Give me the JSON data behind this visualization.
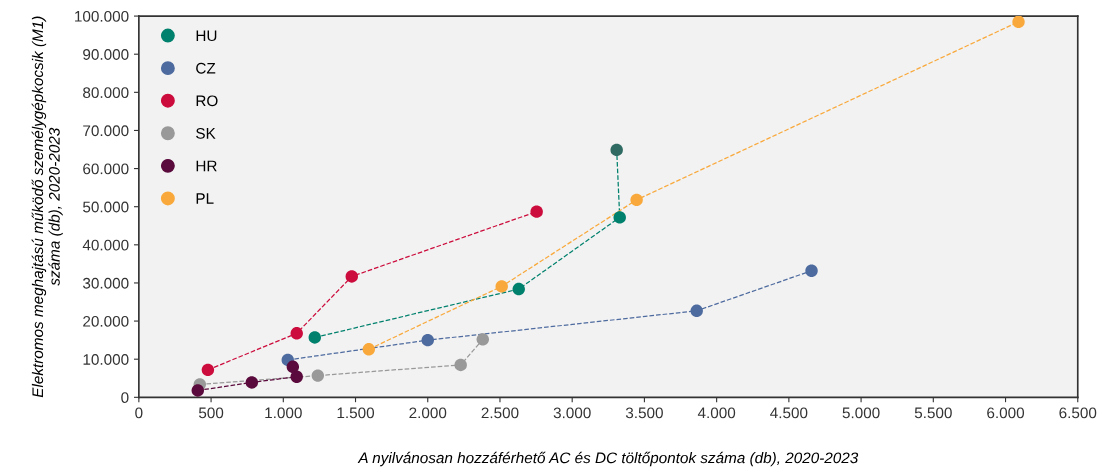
{
  "chart_data": {
    "type": "line",
    "xlabel": "A nyilvánosan hozzáférhető AC és DC töltőpontok száma (db), 2020-2023",
    "ylabel": "Elektromos meghajtású működő személygépkocsik (M1)\nszáma (db), 2020-2023",
    "series": [
      {
        "name": "HU",
        "color": "#00816d",
        "colors": [
          "#00816d",
          "#00816d",
          "#00816d",
          "#2f6b63"
        ],
        "x": [
          1218,
          2630,
          3329,
          3308
        ],
        "values": [
          15700,
          28400,
          47200,
          64900
        ]
      },
      {
        "name": "CZ",
        "color": "#4e6b9f",
        "x": [
          1031,
          2000,
          3862,
          4657
        ],
        "values": [
          9800,
          15000,
          22700,
          33200
        ]
      },
      {
        "name": "RO",
        "color": "#cc0c3c",
        "x": [
          478,
          1093,
          1474,
          2754
        ],
        "values": [
          7200,
          16800,
          31700,
          48700
        ]
      },
      {
        "name": "SK",
        "color": "#999999",
        "x": [
          422,
          1239,
          2228,
          2381
        ],
        "values": [
          3400,
          5700,
          8500,
          15200
        ]
      },
      {
        "name": "HR",
        "color": "#5a0a3c",
        "x": [
          408,
          782,
          1093,
          1066
        ],
        "values": [
          1800,
          3900,
          5400,
          8000
        ]
      },
      {
        "name": "PL",
        "color": "#f9a93b",
        "x": [
          1592,
          2512,
          3446,
          6090
        ],
        "values": [
          12600,
          29100,
          51800,
          98500
        ]
      }
    ],
    "xlim": [
      0,
      6500
    ],
    "ylim": [
      0,
      100000
    ],
    "xticks": [
      0,
      {
        "value": 500,
        "label": "500"
      },
      {
        "value": 1000,
        "label": "1.000"
      },
      {
        "value": 1500,
        "label": "1.500"
      },
      {
        "value": 2000,
        "label": "2.000"
      },
      {
        "value": 2500,
        "label": "2.500"
      },
      {
        "value": 3000,
        "label": "3.000"
      },
      {
        "value": 3500,
        "label": "3.500"
      },
      {
        "value": 4000,
        "label": "4.000"
      },
      {
        "value": 4500,
        "label": "4.500"
      },
      {
        "value": 5000,
        "label": "5.000"
      },
      {
        "value": 5500,
        "label": "5.500"
      },
      {
        "value": 6000,
        "label": "6.000"
      },
      {
        "value": 6500,
        "label": "6.500"
      }
    ],
    "yticks": [
      0,
      {
        "value": 10000,
        "label": "10.000"
      },
      {
        "value": 20000,
        "label": "20.000"
      },
      {
        "value": 30000,
        "label": "30.000"
      },
      {
        "value": 40000,
        "label": "40.000"
      },
      {
        "value": 50000,
        "label": "50.000"
      },
      {
        "value": 60000,
        "label": "60.000"
      },
      {
        "value": 70000,
        "label": "70.000"
      },
      {
        "value": 80000,
        "label": "80.000"
      },
      {
        "value": 90000,
        "label": "90.000"
      },
      {
        "value": 100000,
        "label": "100.000"
      }
    ],
    "grid": false,
    "legend": "top left",
    "marker": "circle",
    "line_style": "dashed"
  }
}
